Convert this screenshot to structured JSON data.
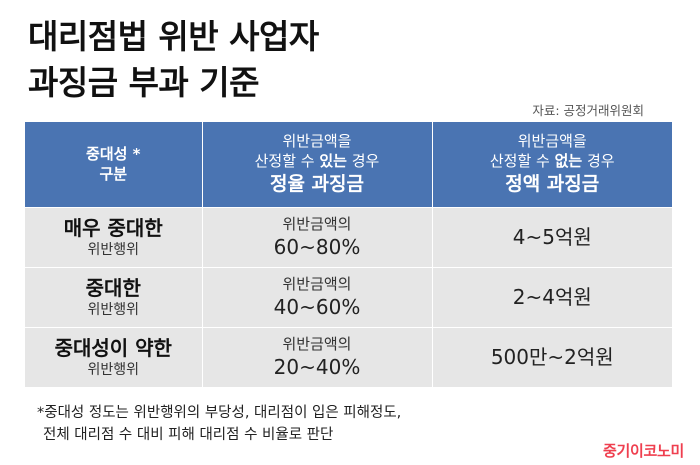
{
  "title": {
    "line1": "대리점법 위반 사업자",
    "line2": "과징금 부과 기준"
  },
  "source": "자료: 공정거래위원회",
  "table": {
    "header": {
      "gubun_line1": "중대성 *",
      "gubun_line2": "구분",
      "col1_line1": "위반금액을",
      "col1_line2_pre": "산정할 수 ",
      "col1_line2_bold": "있는",
      "col1_line2_post": " 경우",
      "col1_big": "정율 과징금",
      "col2_line1": "위반금액을",
      "col2_line2_pre": "산정할 수 ",
      "col2_line2_bold": "없는",
      "col2_line2_post": " 경우",
      "col2_big": "정액 과징금"
    },
    "rows": [
      {
        "level": "매우 중대한",
        "sub": "위반행위",
        "rate_label": "위반금액의",
        "rate": "60~80%",
        "amount": "4~5억원"
      },
      {
        "level": "중대한",
        "sub": "위반행위",
        "rate_label": "위반금액의",
        "rate": "40~60%",
        "amount": "2~4억원"
      },
      {
        "level": "중대성이 약한",
        "sub": "위반행위",
        "rate_label": "위반금액의",
        "rate": "20~40%",
        "amount": "500만~2억원"
      }
    ]
  },
  "note": {
    "line1": "*중대성 정도는 위반행위의 부당성, 대리점이 입은 피해정도,",
    "line2": "전체 대리점 수 대비 피해 대리점 수 비율로 판단"
  },
  "logo": "중기이코노미",
  "colors": {
    "header_bg": "#4a74b2",
    "row_bg": "#e6e6e6",
    "logo": "#ef3f4f"
  }
}
